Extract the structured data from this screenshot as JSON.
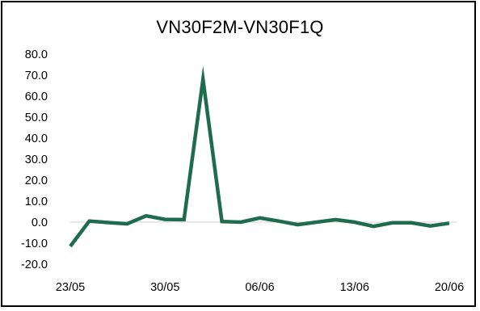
{
  "chart_data": {
    "type": "line",
    "title": "VN30F2M-VN30F1Q",
    "xlabel": "",
    "ylabel": "",
    "ylim": [
      -20,
      80
    ],
    "yticks": [
      "80.0",
      "70.0",
      "60.0",
      "50.0",
      "40.0",
      "30.0",
      "20.0",
      "10.0",
      "0.0",
      "-10.0",
      "-20.0"
    ],
    "ytick_values": [
      80,
      70,
      60,
      50,
      40,
      30,
      20,
      10,
      0,
      -10,
      -20
    ],
    "xticks": [
      "23/05",
      "30/05",
      "06/06",
      "13/06",
      "20/06"
    ],
    "grid": false,
    "legend": "none",
    "series": [
      {
        "color": "#1e6b4e",
        "x": [
          "23/05",
          "24/05",
          "27/05",
          "28/05",
          "29/05",
          "30/05",
          "31/05",
          "03/06",
          "04/06",
          "05/06",
          "06/06",
          "07/06",
          "10/06",
          "11/06",
          "12/06",
          "13/06",
          "14/06",
          "17/06",
          "18/06",
          "19/06",
          "20/06"
        ],
        "values": [
          -11.5,
          0.5,
          -0.2,
          -0.8,
          3.0,
          1.3,
          1.2,
          68.0,
          0.3,
          0.0,
          2.0,
          0.5,
          -1.2,
          0.0,
          1.2,
          0.0,
          -2.0,
          -0.3,
          -0.3,
          -1.8,
          -0.5
        ]
      }
    ]
  }
}
